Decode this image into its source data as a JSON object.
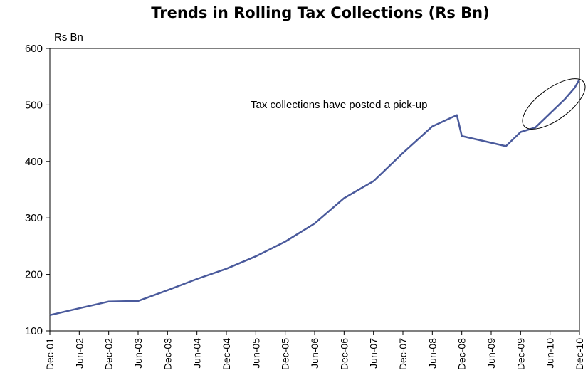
{
  "chart_data": {
    "type": "line",
    "title": "Trends in Rolling Tax Collections (Rs Bn)",
    "ylabel": "Rs Bn",
    "xlabel": "",
    "ylim": [
      100,
      600
    ],
    "yticks": [
      "100",
      "200",
      "300",
      "400",
      "500",
      "600"
    ],
    "x_tick_labels": [
      "Dec-01",
      "Jun-02",
      "Dec-02",
      "Jun-03",
      "Dec-03",
      "Jun-04",
      "Dec-04",
      "Jun-05",
      "Dec-05",
      "Jun-06",
      "Dec-06",
      "Jun-07",
      "Dec-07",
      "Jun-08",
      "Dec-08",
      "Jun-09",
      "Dec-09",
      "Jun-10",
      "Dec-10"
    ],
    "grid": false,
    "line_color": "#4a5a9c",
    "annotation": "Tax collections have posted a pick-up",
    "series": [
      {
        "x": [
          "Dec-01",
          "Jun-02",
          "Dec-02",
          "Jun-03",
          "Dec-03",
          "Jun-04",
          "Dec-04",
          "Jun-05",
          "Dec-05",
          "Jun-06",
          "Dec-06",
          "Jun-07",
          "Dec-07",
          "Jun-08",
          "Nov-08",
          "Dec-08",
          "Jun-09",
          "Sep-09",
          "Dec-09",
          "Mar-10",
          "Jun-10",
          "Sep-10",
          "Nov-10",
          "Dec-10"
        ],
        "values": [
          128,
          140,
          152,
          153,
          172,
          192,
          210,
          232,
          258,
          290,
          335,
          365,
          415,
          462,
          482,
          445,
          433,
          427,
          452,
          460,
          485,
          510,
          530,
          545
        ]
      }
    ]
  }
}
